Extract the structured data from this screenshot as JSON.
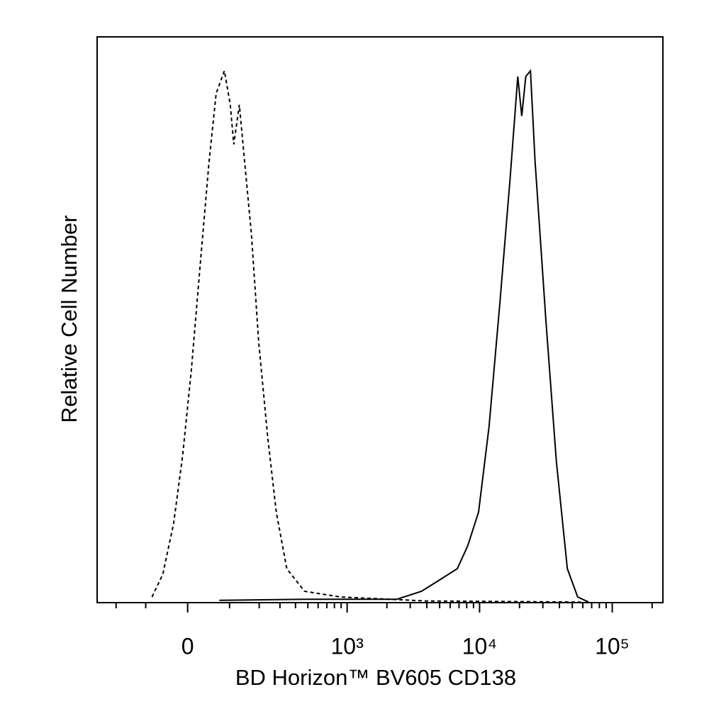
{
  "chart_data": {
    "type": "line",
    "x_label": "BD Horizon™ BV605 CD138",
    "y_label": "Relative Cell Number",
    "x_scale": "biexponential",
    "xlim": [
      -290,
      241000
    ],
    "ylim": [
      0,
      100
    ],
    "xticks": [
      0,
      {
        "value": 1000,
        "label": "10³"
      },
      {
        "value": 10000,
        "label": "10⁴"
      },
      {
        "value": 100000,
        "label": "10⁵"
      }
    ],
    "xminorticks": [
      -200,
      -100,
      100,
      200,
      300,
      400,
      500,
      600,
      700,
      800,
      900,
      2000,
      3000,
      4000,
      5000,
      6000,
      7000,
      8000,
      9000,
      20000,
      30000,
      40000,
      50000,
      60000,
      70000,
      80000,
      90000,
      200000
    ],
    "series": [
      {
        "color": "#000000",
        "style": "dashed",
        "x": [
          -83,
          -56,
          -31,
          -11,
          8,
          27,
          48,
          65,
          86,
          102,
          112,
          129,
          146,
          170,
          198,
          238,
          280,
          341,
          471,
          888,
          3900,
          58000
        ],
        "values": [
          1,
          5,
          14,
          26,
          41,
          59,
          78,
          90,
          94,
          88,
          81,
          88,
          78,
          65,
          46,
          29,
          16,
          6,
          2,
          1,
          0.3,
          0.1
        ]
      },
      {
        "color": "#000000",
        "style": "solid",
        "x": [
          73,
          471,
          2380,
          3650,
          4980,
          6790,
          8130,
          9830,
          11770,
          14240,
          17000,
          19400,
          20800,
          22300,
          24200,
          26200,
          31600,
          37900,
          45900,
          54900,
          66400
        ],
        "values": [
          0.4,
          0.6,
          0.6,
          2,
          4,
          6,
          10,
          16,
          31,
          53,
          75,
          93,
          86,
          93,
          94,
          78,
          50,
          25,
          6,
          1,
          0.1
        ]
      }
    ]
  }
}
